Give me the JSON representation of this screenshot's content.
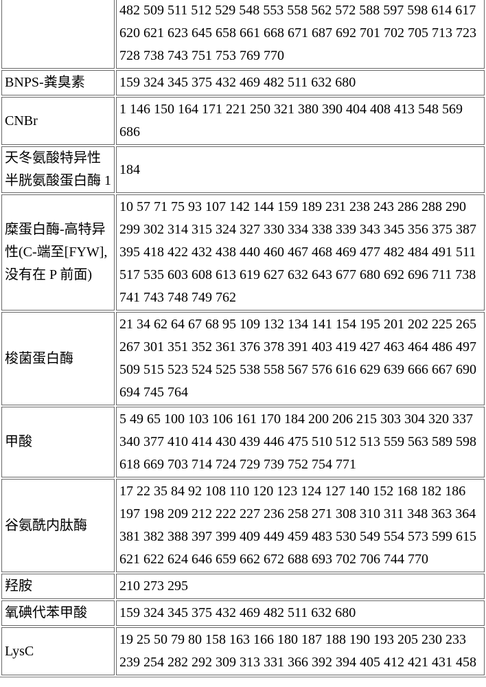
{
  "table": {
    "rows": [
      {
        "name_lines": [
          ""
        ],
        "value_lines": [
          "482 509 511 512 529 548 553 558 562 572 588 597 598 614 617",
          "620 621 623 645 658 661 668 671 687 692 701 702 705 713 723",
          "728 738 743 751 753 769 770"
        ]
      },
      {
        "name_lines": [
          "BNPS-粪臭素"
        ],
        "value_lines": [
          "159 324 345 375 432 469 482 511 632 680"
        ]
      },
      {
        "name_lines": [
          "CNBr"
        ],
        "value_lines": [
          "1 146 150 164 171 221 250 321 380 390 404 408 413 548 569",
          "686"
        ]
      },
      {
        "name_lines": [
          "天冬氨酸特异性",
          "半胱氨酸蛋白酶 1"
        ],
        "value_lines": [
          "184"
        ]
      },
      {
        "name_lines": [
          "糜蛋白酶-高特异",
          "性(C-端至[FYW],",
          "没有在 P 前面)"
        ],
        "value_lines": [
          "10 57 71 75 93 107 142 144 159 189 231 238 243 286 288 290",
          "299 302 314 315 324 327 330 334 338 339 343 345 356 375 387",
          "395 418 422 432 438 440 460 467 468 469 477 482 484 491 511",
          "517 535 603 608 613 619 627 632 643 677 680 692 696 711 738",
          "741 743 748 749 762"
        ]
      },
      {
        "name_lines": [
          "梭菌蛋白酶"
        ],
        "value_lines": [
          "21 34 62 64 67 68 95 109 132 134 141 154 195 201 202 225 265",
          "267 301 351 352 361 376 378 391 403 419 427 463 464 486 497",
          "509 515 523 524 525 538 558 567 576 616 629 639 666 667 690",
          "694 745 764"
        ]
      },
      {
        "name_lines": [
          "甲酸"
        ],
        "value_lines": [
          "5 49 65 100 103 106 161 170 184 200 206 215 303 304 320 337",
          "340 377 410 414 430 439 446 475 510 512 513 559 563 589 598",
          "618 669 703 714 724 729 739 752 754 771"
        ]
      },
      {
        "name_lines": [
          "谷氨酰内肽酶"
        ],
        "value_lines": [
          "17 22 35 84 92 108 110 120 123 124 127 140 152 168 182 186",
          "197 198 209 212 222 227 236 258 271 308 310 311 348 363 364",
          "381 382 388 397 399 409 449 459 483 530 549 554 573 599 615",
          "621 622 624 646 659 662 672 688 693 702 706 744 770"
        ]
      },
      {
        "name_lines": [
          "羟胺"
        ],
        "value_lines": [
          "210 273 295"
        ]
      },
      {
        "name_lines": [
          "氧碘代苯甲酸"
        ],
        "value_lines": [
          "159 324 345 375 432 469 482 511 632 680"
        ]
      },
      {
        "name_lines": [
          "LysC"
        ],
        "value_lines": [
          "19 25 50 79 80 158 163 166 180 187 188 190 193 205 230 233",
          "239 254 282 292 309 313 331 366 392 394 405 412 421 431 458"
        ]
      }
    ]
  }
}
